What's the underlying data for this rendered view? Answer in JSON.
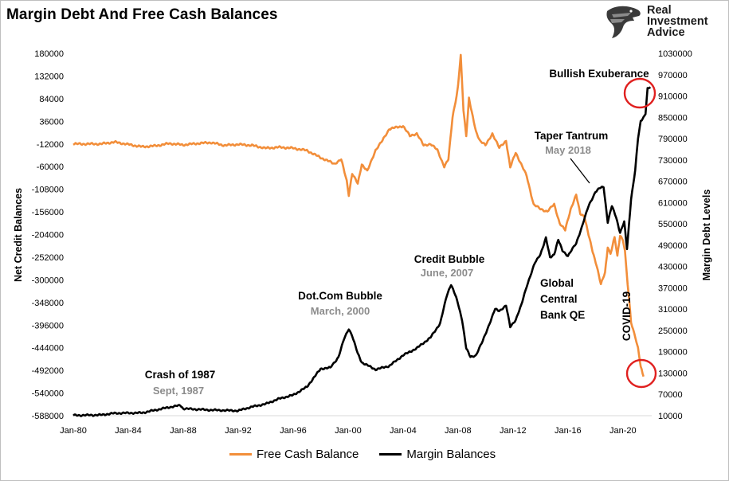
{
  "header": {
    "title": "Margin Debt And Free Cash Balances"
  },
  "brand": {
    "line1": "Real",
    "line2": "Investment",
    "line3": "Advice",
    "logo": "eagle-head-logo"
  },
  "colors": {
    "free_cash": "#f28e3a",
    "margin": "#000000",
    "circle": "#e0201f",
    "annotation_gray": "#8c8c8c"
  },
  "legend": {
    "free_cash_label": "Free Cash Balance",
    "margin_label": "Margin Balances"
  },
  "chart_data": {
    "type": "line",
    "title": "Margin Debt And Free Cash Balances",
    "xlabel": "",
    "ylabel_left": "Net Credit Balances",
    "ylabel_right": "Margin Debt Levels",
    "x_ticks": [
      "Jan-80",
      "Jan-84",
      "Jan-88",
      "Jan-92",
      "Jan-96",
      "Jan-00",
      "Jan-04",
      "Jan-08",
      "Jan-12",
      "Jan-16",
      "Jan-20"
    ],
    "x_range": [
      1980,
      2022.1
    ],
    "ylim_left": [
      -588000,
      180000
    ],
    "ylim_right": [
      10000,
      1030000
    ],
    "left_ticks": [
      180000,
      132000,
      84000,
      36000,
      -12000,
      -60000,
      -108000,
      -156000,
      -204000,
      -252000,
      -300000,
      -348000,
      -396000,
      -444000,
      -492000,
      -540000,
      -588000
    ],
    "right_ticks": [
      1030000,
      970000,
      910000,
      850000,
      790000,
      730000,
      670000,
      610000,
      550000,
      490000,
      430000,
      370000,
      310000,
      250000,
      190000,
      130000,
      70000,
      10000
    ],
    "series": [
      {
        "name": "Free Cash Balance",
        "axis": "left",
        "color": "#f28e3a",
        "points": [
          [
            1980,
            -12000
          ],
          [
            1982,
            -12000
          ],
          [
            1983,
            -8000
          ],
          [
            1984,
            -13000
          ],
          [
            1985,
            -18000
          ],
          [
            1986,
            -16000
          ],
          [
            1987,
            -11000
          ],
          [
            1988,
            -14000
          ],
          [
            1989,
            -11000
          ],
          [
            1990,
            -9000
          ],
          [
            1991,
            -15000
          ],
          [
            1992,
            -13000
          ],
          [
            1993,
            -15000
          ],
          [
            1994,
            -21000
          ],
          [
            1995,
            -19000
          ],
          [
            1996,
            -21000
          ],
          [
            1997,
            -26000
          ],
          [
            1998,
            -41000
          ],
          [
            1999,
            -54000
          ],
          [
            1999.5,
            -45000
          ],
          [
            1999.9,
            -90000
          ],
          [
            2000.05,
            -120000
          ],
          [
            2000.3,
            -75000
          ],
          [
            2000.7,
            -96000
          ],
          [
            2001,
            -55000
          ],
          [
            2001.4,
            -70000
          ],
          [
            2002,
            -25000
          ],
          [
            2002.5,
            -5000
          ],
          [
            2003,
            20000
          ],
          [
            2004,
            26000
          ],
          [
            2004.5,
            5000
          ],
          [
            2005,
            10000
          ],
          [
            2005.5,
            -15000
          ],
          [
            2006,
            -12000
          ],
          [
            2006.5,
            -25000
          ],
          [
            2007,
            -60000
          ],
          [
            2007.3,
            -45000
          ],
          [
            2007.6,
            45000
          ],
          [
            2007.9,
            90000
          ],
          [
            2008.0,
            110000
          ],
          [
            2008.2,
            175000
          ],
          [
            2008.4,
            60000
          ],
          [
            2008.6,
            5000
          ],
          [
            2008.8,
            85000
          ],
          [
            2009.0,
            55000
          ],
          [
            2009.3,
            15000
          ],
          [
            2009.6,
            -5000
          ],
          [
            2010,
            -15000
          ],
          [
            2010.5,
            10000
          ],
          [
            2011,
            -20000
          ],
          [
            2011.5,
            -5000
          ],
          [
            2011.8,
            -62000
          ],
          [
            2012.2,
            -30000
          ],
          [
            2012.6,
            -55000
          ],
          [
            2013,
            -80000
          ],
          [
            2013.5,
            -140000
          ],
          [
            2014,
            -150000
          ],
          [
            2014.5,
            -155000
          ],
          [
            2015,
            -140000
          ],
          [
            2015.4,
            -180000
          ],
          [
            2015.8,
            -195000
          ],
          [
            2016.2,
            -150000
          ],
          [
            2016.6,
            -120000
          ],
          [
            2016.9,
            -160000
          ],
          [
            2017.2,
            -165000
          ],
          [
            2017.5,
            -205000
          ],
          [
            2017.8,
            -240000
          ],
          [
            2018.1,
            -270000
          ],
          [
            2018.4,
            -310000
          ],
          [
            2018.7,
            -285000
          ],
          [
            2018.9,
            -230000
          ],
          [
            2019.1,
            -245000
          ],
          [
            2019.4,
            -210000
          ],
          [
            2019.6,
            -250000
          ],
          [
            2019.8,
            -205000
          ],
          [
            2020.0,
            -215000
          ],
          [
            2020.15,
            -240000
          ],
          [
            2020.35,
            -310000
          ],
          [
            2020.6,
            -390000
          ],
          [
            2020.9,
            -420000
          ],
          [
            2021.1,
            -445000
          ],
          [
            2021.3,
            -485000
          ],
          [
            2021.5,
            -505000
          ]
        ]
      },
      {
        "name": "Margin Balances",
        "axis": "right",
        "color": "#000000",
        "points": [
          [
            1980,
            11000
          ],
          [
            1982,
            12000
          ],
          [
            1983,
            17000
          ],
          [
            1985,
            18000
          ],
          [
            1986,
            26000
          ],
          [
            1987,
            34000
          ],
          [
            1987.8,
            39000
          ],
          [
            1988,
            30000
          ],
          [
            1990,
            26000
          ],
          [
            1992,
            24000
          ],
          [
            1993,
            35000
          ],
          [
            1994,
            43000
          ],
          [
            1995,
            58000
          ],
          [
            1996,
            68000
          ],
          [
            1997,
            91000
          ],
          [
            1998,
            142000
          ],
          [
            1998.7,
            145000
          ],
          [
            1999.3,
            175000
          ],
          [
            1999.7,
            225000
          ],
          [
            2000.05,
            255000
          ],
          [
            2000.3,
            235000
          ],
          [
            2000.7,
            185000
          ],
          [
            2001,
            160000
          ],
          [
            2002,
            140000
          ],
          [
            2003,
            150000
          ],
          [
            2004,
            180000
          ],
          [
            2005,
            200000
          ],
          [
            2006,
            230000
          ],
          [
            2006.7,
            270000
          ],
          [
            2007.2,
            350000
          ],
          [
            2007.5,
            380000
          ],
          [
            2007.8,
            350000
          ],
          [
            2008.0,
            325000
          ],
          [
            2008.3,
            280000
          ],
          [
            2008.6,
            200000
          ],
          [
            2008.9,
            175000
          ],
          [
            2009.3,
            180000
          ],
          [
            2009.8,
            220000
          ],
          [
            2010.3,
            270000
          ],
          [
            2010.7,
            310000
          ],
          [
            2011,
            305000
          ],
          [
            2011.5,
            320000
          ],
          [
            2011.8,
            260000
          ],
          [
            2012.2,
            280000
          ],
          [
            2012.6,
            320000
          ],
          [
            2013,
            375000
          ],
          [
            2013.6,
            440000
          ],
          [
            2014,
            465000
          ],
          [
            2014.4,
            510000
          ],
          [
            2014.7,
            455000
          ],
          [
            2015,
            465000
          ],
          [
            2015.3,
            505000
          ],
          [
            2015.6,
            475000
          ],
          [
            2016,
            460000
          ],
          [
            2016.6,
            495000
          ],
          [
            2017,
            540000
          ],
          [
            2017.5,
            600000
          ],
          [
            2018,
            640000
          ],
          [
            2018.3,
            650000
          ],
          [
            2018.6,
            655000
          ],
          [
            2018.9,
            555000
          ],
          [
            2019.2,
            600000
          ],
          [
            2019.5,
            570000
          ],
          [
            2019.8,
            525000
          ],
          [
            2020.1,
            555000
          ],
          [
            2020.3,
            480000
          ],
          [
            2020.6,
            620000
          ],
          [
            2020.9,
            700000
          ],
          [
            2021.1,
            790000
          ],
          [
            2021.3,
            840000
          ],
          [
            2021.5,
            850000
          ],
          [
            2021.65,
            860000
          ],
          [
            2021.8,
            930000
          ],
          [
            2022.0,
            935000
          ]
        ]
      }
    ],
    "annotations": [
      {
        "id": "crash87",
        "label": "Crash of 1987",
        "sub": "Sept, 1987"
      },
      {
        "id": "dotcom",
        "label": "Dot.Com Bubble",
        "sub": "March, 2000"
      },
      {
        "id": "credit",
        "label": "Credit Bubble",
        "sub": "June, 2007"
      },
      {
        "id": "qe",
        "lines": [
          "Global",
          "Central",
          "Bank QE"
        ]
      },
      {
        "id": "taper",
        "label": "Taper Tantrum",
        "sub": "May 2018"
      },
      {
        "id": "bullish",
        "label": "Bullish Exuberance"
      },
      {
        "id": "covid",
        "label": "COVID-19"
      }
    ]
  }
}
